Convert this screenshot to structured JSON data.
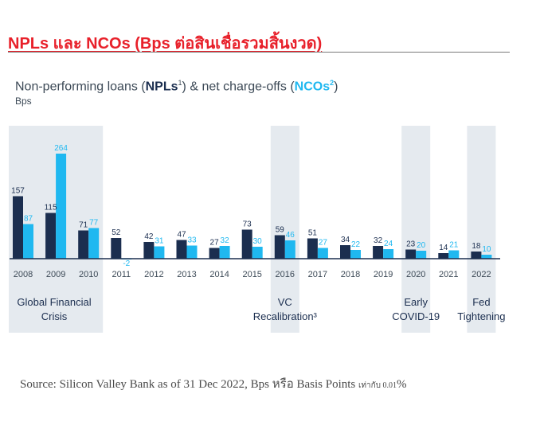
{
  "header": {
    "title": "NPLs และ NCOs (Bps ต่อสินเชื่อรวมสิ้นงวด)"
  },
  "chart_title": {
    "prefix": "Non-performing loans (",
    "npl_label": "NPLs",
    "npl_sup": "1",
    "middle": ") & net charge-offs (",
    "nco_label": "NCOs",
    "nco_sup": "2",
    "suffix": ")"
  },
  "chart_data": {
    "type": "bar",
    "ylabel": "Bps",
    "categories": [
      "2008",
      "2009",
      "2010",
      "2011",
      "2012",
      "2013",
      "2014",
      "2015",
      "2016",
      "2017",
      "2018",
      "2019",
      "2020",
      "2021",
      "2022"
    ],
    "series": [
      {
        "name": "NPLs",
        "values": [
          157,
          115,
          71,
          52,
          42,
          47,
          27,
          73,
          59,
          51,
          34,
          32,
          23,
          14,
          18
        ]
      },
      {
        "name": "NCOs",
        "values": [
          87,
          264,
          77,
          -2,
          31,
          33,
          32,
          30,
          46,
          27,
          22,
          24,
          20,
          21,
          10
        ]
      }
    ],
    "colors": {
      "NPLs": "#1b2e4f",
      "NCOs": "#1fb8f0",
      "highlight": "#e5eaef"
    },
    "highlight_periods": [
      {
        "label_lines": [
          "Global Financial",
          "Crisis"
        ],
        "from": "2008",
        "to": "2010"
      },
      {
        "label_lines": [
          "VC",
          "Recalibration³"
        ],
        "from": "2016",
        "to": "2016"
      },
      {
        "label_lines": [
          "Early",
          "COVID-19"
        ],
        "from": "2020",
        "to": "2020"
      },
      {
        "label_lines": [
          "Fed",
          "Tightening"
        ],
        "from": "2022",
        "to": "2022"
      }
    ],
    "grid": false
  },
  "footer": {
    "source_main": "Source: Silicon Valley Bank as of 31 Dec 2022, Bps หรือ Basis Points",
    "source_small": "เท่ากับ 0.01",
    "source_end": "%"
  }
}
